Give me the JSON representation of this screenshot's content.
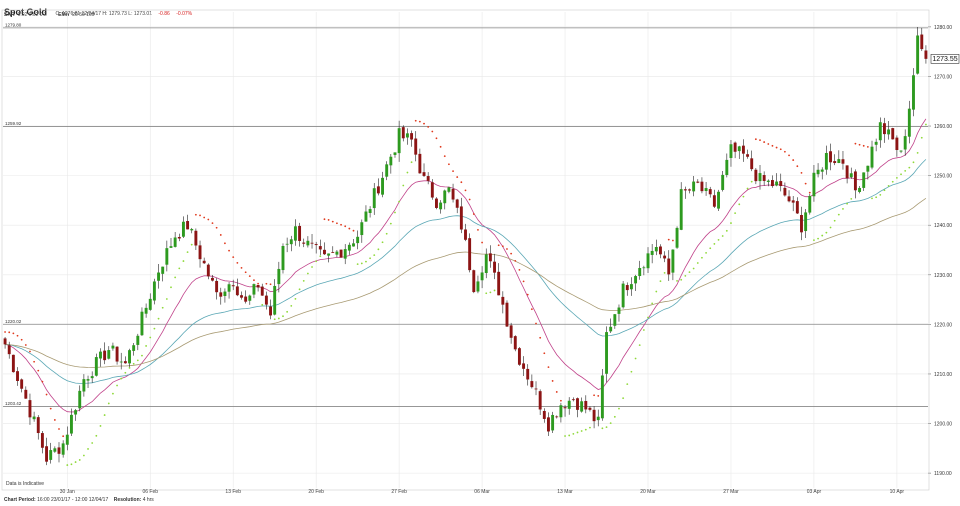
{
  "header": {
    "title": "Spot Gold",
    "ohlc": "O: 1276.81 12/04/17 H: 1279.73 L: 1273.01",
    "change_abs": "-0.86",
    "change_pct": "-0.07%"
  },
  "indicators": [
    {
      "name": "SAR",
      "params": "0.02 0.02 0.2"
    },
    {
      "name": "EMA",
      "params": "20 50 100"
    }
  ],
  "footer": {
    "chart_period_label": "Chart Period:",
    "chart_period_value": "16:00 23/01/17 - 12:00 12/04/17",
    "resolution_label": "Resolution:",
    "resolution_value": "4 hrs"
  },
  "note": "Data is Indicative",
  "current_price_tag": "1273.55",
  "colors": {
    "up": "#2d9a1f",
    "down": "#8c1414",
    "sar_above": "#e03a1e",
    "sar_below": "#8fd93a",
    "ema20": "#c0428a",
    "ema50": "#5aa7b5",
    "ema100": "#a89a72",
    "grid": "#e8e8e8",
    "hline": "#888888"
  },
  "chart_data": {
    "type": "candlestick",
    "title": "Spot Gold",
    "y_axis": {
      "ylim": [
        1187,
        1283
      ],
      "ticks": [
        1190,
        1200,
        1210,
        1220,
        1230,
        1240,
        1250,
        1260,
        1270,
        1280
      ],
      "tick_labels": [
        "1190.00",
        "1200.00",
        "1210.00",
        "1220.00",
        "1230.00",
        "1240.00",
        "1250.00",
        "1260.00",
        "1270.00",
        "1280.00"
      ],
      "position": "right"
    },
    "x_axis": {
      "tick_labels": [
        "30 Jan",
        "06 Feb",
        "13 Feb",
        "20 Feb",
        "27 Feb",
        "06 Mar",
        "13 Mar",
        "20 Mar",
        "27 Mar",
        "03 Apr",
        "10 Apr"
      ],
      "tick_bars": [
        15,
        35,
        55,
        75,
        95,
        115,
        135,
        155,
        175,
        195,
        215
      ],
      "n_bars": 222
    },
    "horizontal_lines": [
      {
        "value": 1279.8,
        "label": "1279.80"
      },
      {
        "value": 1259.92,
        "label": "1259.92"
      },
      {
        "value": 1220.02,
        "label": "1220.02"
      },
      {
        "value": 1203.42,
        "label": "1203.42"
      }
    ],
    "close_anchors": [
      [
        0,
        1216
      ],
      [
        5,
        1205
      ],
      [
        10,
        1193
      ],
      [
        14,
        1196
      ],
      [
        19,
        1209
      ],
      [
        25,
        1215
      ],
      [
        29,
        1212
      ],
      [
        33,
        1221
      ],
      [
        37,
        1231
      ],
      [
        41,
        1238
      ],
      [
        44,
        1240
      ],
      [
        48,
        1232
      ],
      [
        51,
        1226
      ],
      [
        55,
        1229
      ],
      [
        58,
        1224
      ],
      [
        61,
        1228
      ],
      [
        64,
        1222
      ],
      [
        67,
        1236
      ],
      [
        70,
        1239
      ],
      [
        73,
        1236
      ],
      [
        77,
        1233
      ],
      [
        81,
        1235
      ],
      [
        85,
        1238
      ],
      [
        89,
        1246
      ],
      [
        92,
        1252
      ],
      [
        95,
        1258
      ],
      [
        98,
        1257
      ],
      [
        101,
        1249
      ],
      [
        104,
        1245
      ],
      [
        107,
        1247
      ],
      [
        110,
        1240
      ],
      [
        113,
        1228
      ],
      [
        116,
        1234
      ],
      [
        119,
        1227
      ],
      [
        123,
        1215
      ],
      [
        127,
        1208
      ],
      [
        131,
        1200
      ],
      [
        134,
        1204
      ],
      [
        137,
        1205
      ],
      [
        140,
        1203
      ],
      [
        143,
        1200
      ],
      [
        145,
        1218
      ],
      [
        149,
        1227
      ],
      [
        153,
        1232
      ],
      [
        157,
        1236
      ],
      [
        160,
        1230
      ],
      [
        163,
        1246
      ],
      [
        167,
        1248
      ],
      [
        171,
        1244
      ],
      [
        175,
        1255
      ],
      [
        178,
        1254
      ],
      [
        182,
        1249
      ],
      [
        186,
        1248
      ],
      [
        189,
        1245
      ],
      [
        192,
        1240
      ],
      [
        195,
        1249
      ],
      [
        198,
        1254
      ],
      [
        202,
        1253
      ],
      [
        205,
        1247
      ],
      [
        208,
        1253
      ],
      [
        211,
        1260
      ],
      [
        214,
        1257
      ],
      [
        216,
        1254
      ],
      [
        218,
        1264
      ],
      [
        220,
        1277
      ],
      [
        222,
        1273.6
      ]
    ],
    "ema_periods": [
      20,
      50,
      100
    ],
    "sar_params": [
      0.02,
      0.02,
      0.2
    ],
    "last_price": 1273.55
  }
}
